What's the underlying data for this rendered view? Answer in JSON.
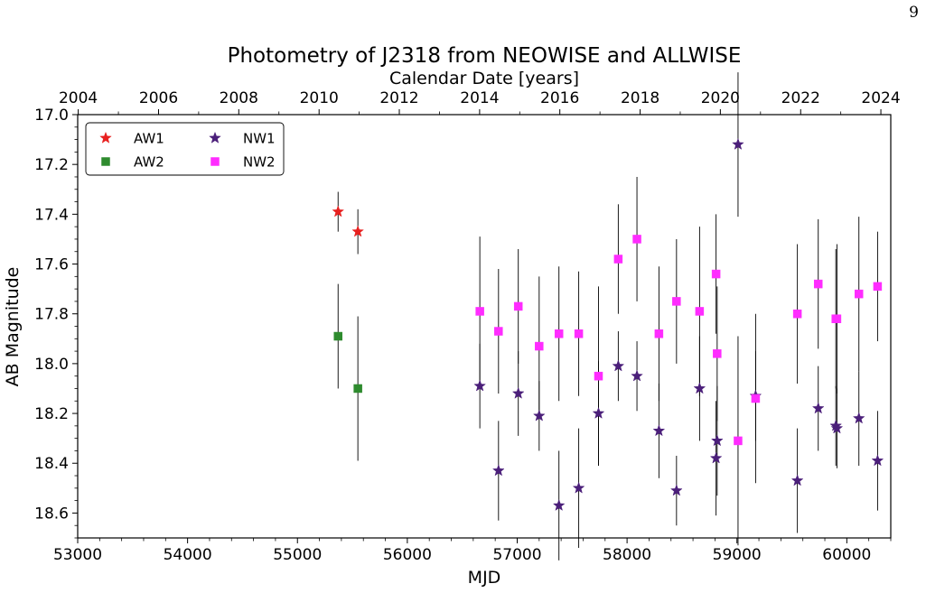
{
  "page_number": "9",
  "chart_data": {
    "type": "scatter",
    "title": "Photometry of J2318 from NEOWISE and ALLWISE",
    "xlabel": "MJD",
    "ylabel": "AB Magnitude",
    "top_xlabel": "Calendar Date [years]",
    "xlim": [
      53000,
      60400
    ],
    "ylim": [
      18.7,
      17.0
    ],
    "y_inverted": true,
    "x_ticks": [
      53000,
      54000,
      55000,
      56000,
      57000,
      58000,
      59000,
      60000
    ],
    "y_ticks": [
      17.0,
      17.2,
      17.4,
      17.6,
      17.8,
      18.0,
      18.2,
      18.4,
      18.6
    ],
    "top_ticks": [
      {
        "label": "2004",
        "mjd": 53005
      },
      {
        "label": "2006",
        "mjd": 53736
      },
      {
        "label": "2008",
        "mjd": 54466
      },
      {
        "label": "2010",
        "mjd": 55197
      },
      {
        "label": "2012",
        "mjd": 55927
      },
      {
        "label": "2014",
        "mjd": 56658
      },
      {
        "label": "2016",
        "mjd": 57388
      },
      {
        "label": "2018",
        "mjd": 58119
      },
      {
        "label": "2020",
        "mjd": 58849
      },
      {
        "label": "2022",
        "mjd": 59580
      },
      {
        "label": "2024",
        "mjd": 60310
      }
    ],
    "legend_position": "top-left",
    "grid": false,
    "series": [
      {
        "name": "AW1",
        "marker": "star",
        "color": "#e8201f",
        "points": [
          {
            "x": 55370,
            "y": 17.39,
            "err": 0.08
          },
          {
            "x": 55550,
            "y": 17.47,
            "err": 0.09
          }
        ]
      },
      {
        "name": "AW2",
        "marker": "square",
        "color": "#2e8b2e",
        "points": [
          {
            "x": 55370,
            "y": 17.89,
            "err": 0.21
          },
          {
            "x": 55550,
            "y": 18.1,
            "err": 0.29
          }
        ]
      },
      {
        "name": "NW1",
        "marker": "star",
        "color": "#4b1f7a",
        "points": [
          {
            "x": 56660,
            "y": 18.09,
            "err": 0.17
          },
          {
            "x": 56830,
            "y": 18.43,
            "err": 0.2
          },
          {
            "x": 57010,
            "y": 18.12,
            "err": 0.17
          },
          {
            "x": 57200,
            "y": 18.21,
            "err": 0.14
          },
          {
            "x": 57380,
            "y": 18.57,
            "err": 0.22
          },
          {
            "x": 57560,
            "y": 18.5,
            "err": 0.24
          },
          {
            "x": 57740,
            "y": 18.2,
            "err": 0.21
          },
          {
            "x": 57920,
            "y": 18.01,
            "err": 0.14
          },
          {
            "x": 58090,
            "y": 18.05,
            "err": 0.14
          },
          {
            "x": 58290,
            "y": 18.27,
            "err": 0.19
          },
          {
            "x": 58450,
            "y": 18.51,
            "err": 0.14
          },
          {
            "x": 58660,
            "y": 18.1,
            "err": 0.21
          },
          {
            "x": 58810,
            "y": 18.38,
            "err": 0.23
          },
          {
            "x": 58820,
            "y": 18.31,
            "err": 0.22
          },
          {
            "x": 59010,
            "y": 17.12,
            "err": 0.29
          },
          {
            "x": 59170,
            "y": 18.13,
            "err": 0.18
          },
          {
            "x": 59550,
            "y": 18.47,
            "err": 0.21
          },
          {
            "x": 59740,
            "y": 18.18,
            "err": 0.17
          },
          {
            "x": 59900,
            "y": 18.25,
            "err": 0.16
          },
          {
            "x": 59910,
            "y": 18.26,
            "err": 0.16
          },
          {
            "x": 60110,
            "y": 18.22,
            "err": 0.19
          },
          {
            "x": 60280,
            "y": 18.39,
            "err": 0.2
          }
        ]
      },
      {
        "name": "NW2",
        "marker": "square",
        "color": "#ff2cff",
        "points": [
          {
            "x": 56660,
            "y": 17.79,
            "err": 0.3
          },
          {
            "x": 56830,
            "y": 17.87,
            "err": 0.25
          },
          {
            "x": 57010,
            "y": 17.77,
            "err": 0.23
          },
          {
            "x": 57200,
            "y": 17.93,
            "err": 0.28
          },
          {
            "x": 57380,
            "y": 17.88,
            "err": 0.27
          },
          {
            "x": 57560,
            "y": 17.88,
            "err": 0.25
          },
          {
            "x": 57740,
            "y": 18.05,
            "err": 0.36
          },
          {
            "x": 57920,
            "y": 17.58,
            "err": 0.22
          },
          {
            "x": 58090,
            "y": 17.5,
            "err": 0.25
          },
          {
            "x": 58290,
            "y": 17.88,
            "err": 0.27
          },
          {
            "x": 58450,
            "y": 17.75,
            "err": 0.25
          },
          {
            "x": 58660,
            "y": 17.79,
            "err": 0.34
          },
          {
            "x": 58810,
            "y": 17.64,
            "err": 0.24
          },
          {
            "x": 58820,
            "y": 17.96,
            "err": 0.27
          },
          {
            "x": 59010,
            "y": 18.31,
            "err": 0.42
          },
          {
            "x": 59170,
            "y": 18.14,
            "err": 0.34
          },
          {
            "x": 59550,
            "y": 17.8,
            "err": 0.28
          },
          {
            "x": 59740,
            "y": 17.68,
            "err": 0.26
          },
          {
            "x": 59900,
            "y": 17.82,
            "err": 0.28
          },
          {
            "x": 59910,
            "y": 17.82,
            "err": 0.3
          },
          {
            "x": 60110,
            "y": 17.72,
            "err": 0.31
          },
          {
            "x": 60280,
            "y": 17.69,
            "err": 0.22
          }
        ]
      }
    ]
  }
}
